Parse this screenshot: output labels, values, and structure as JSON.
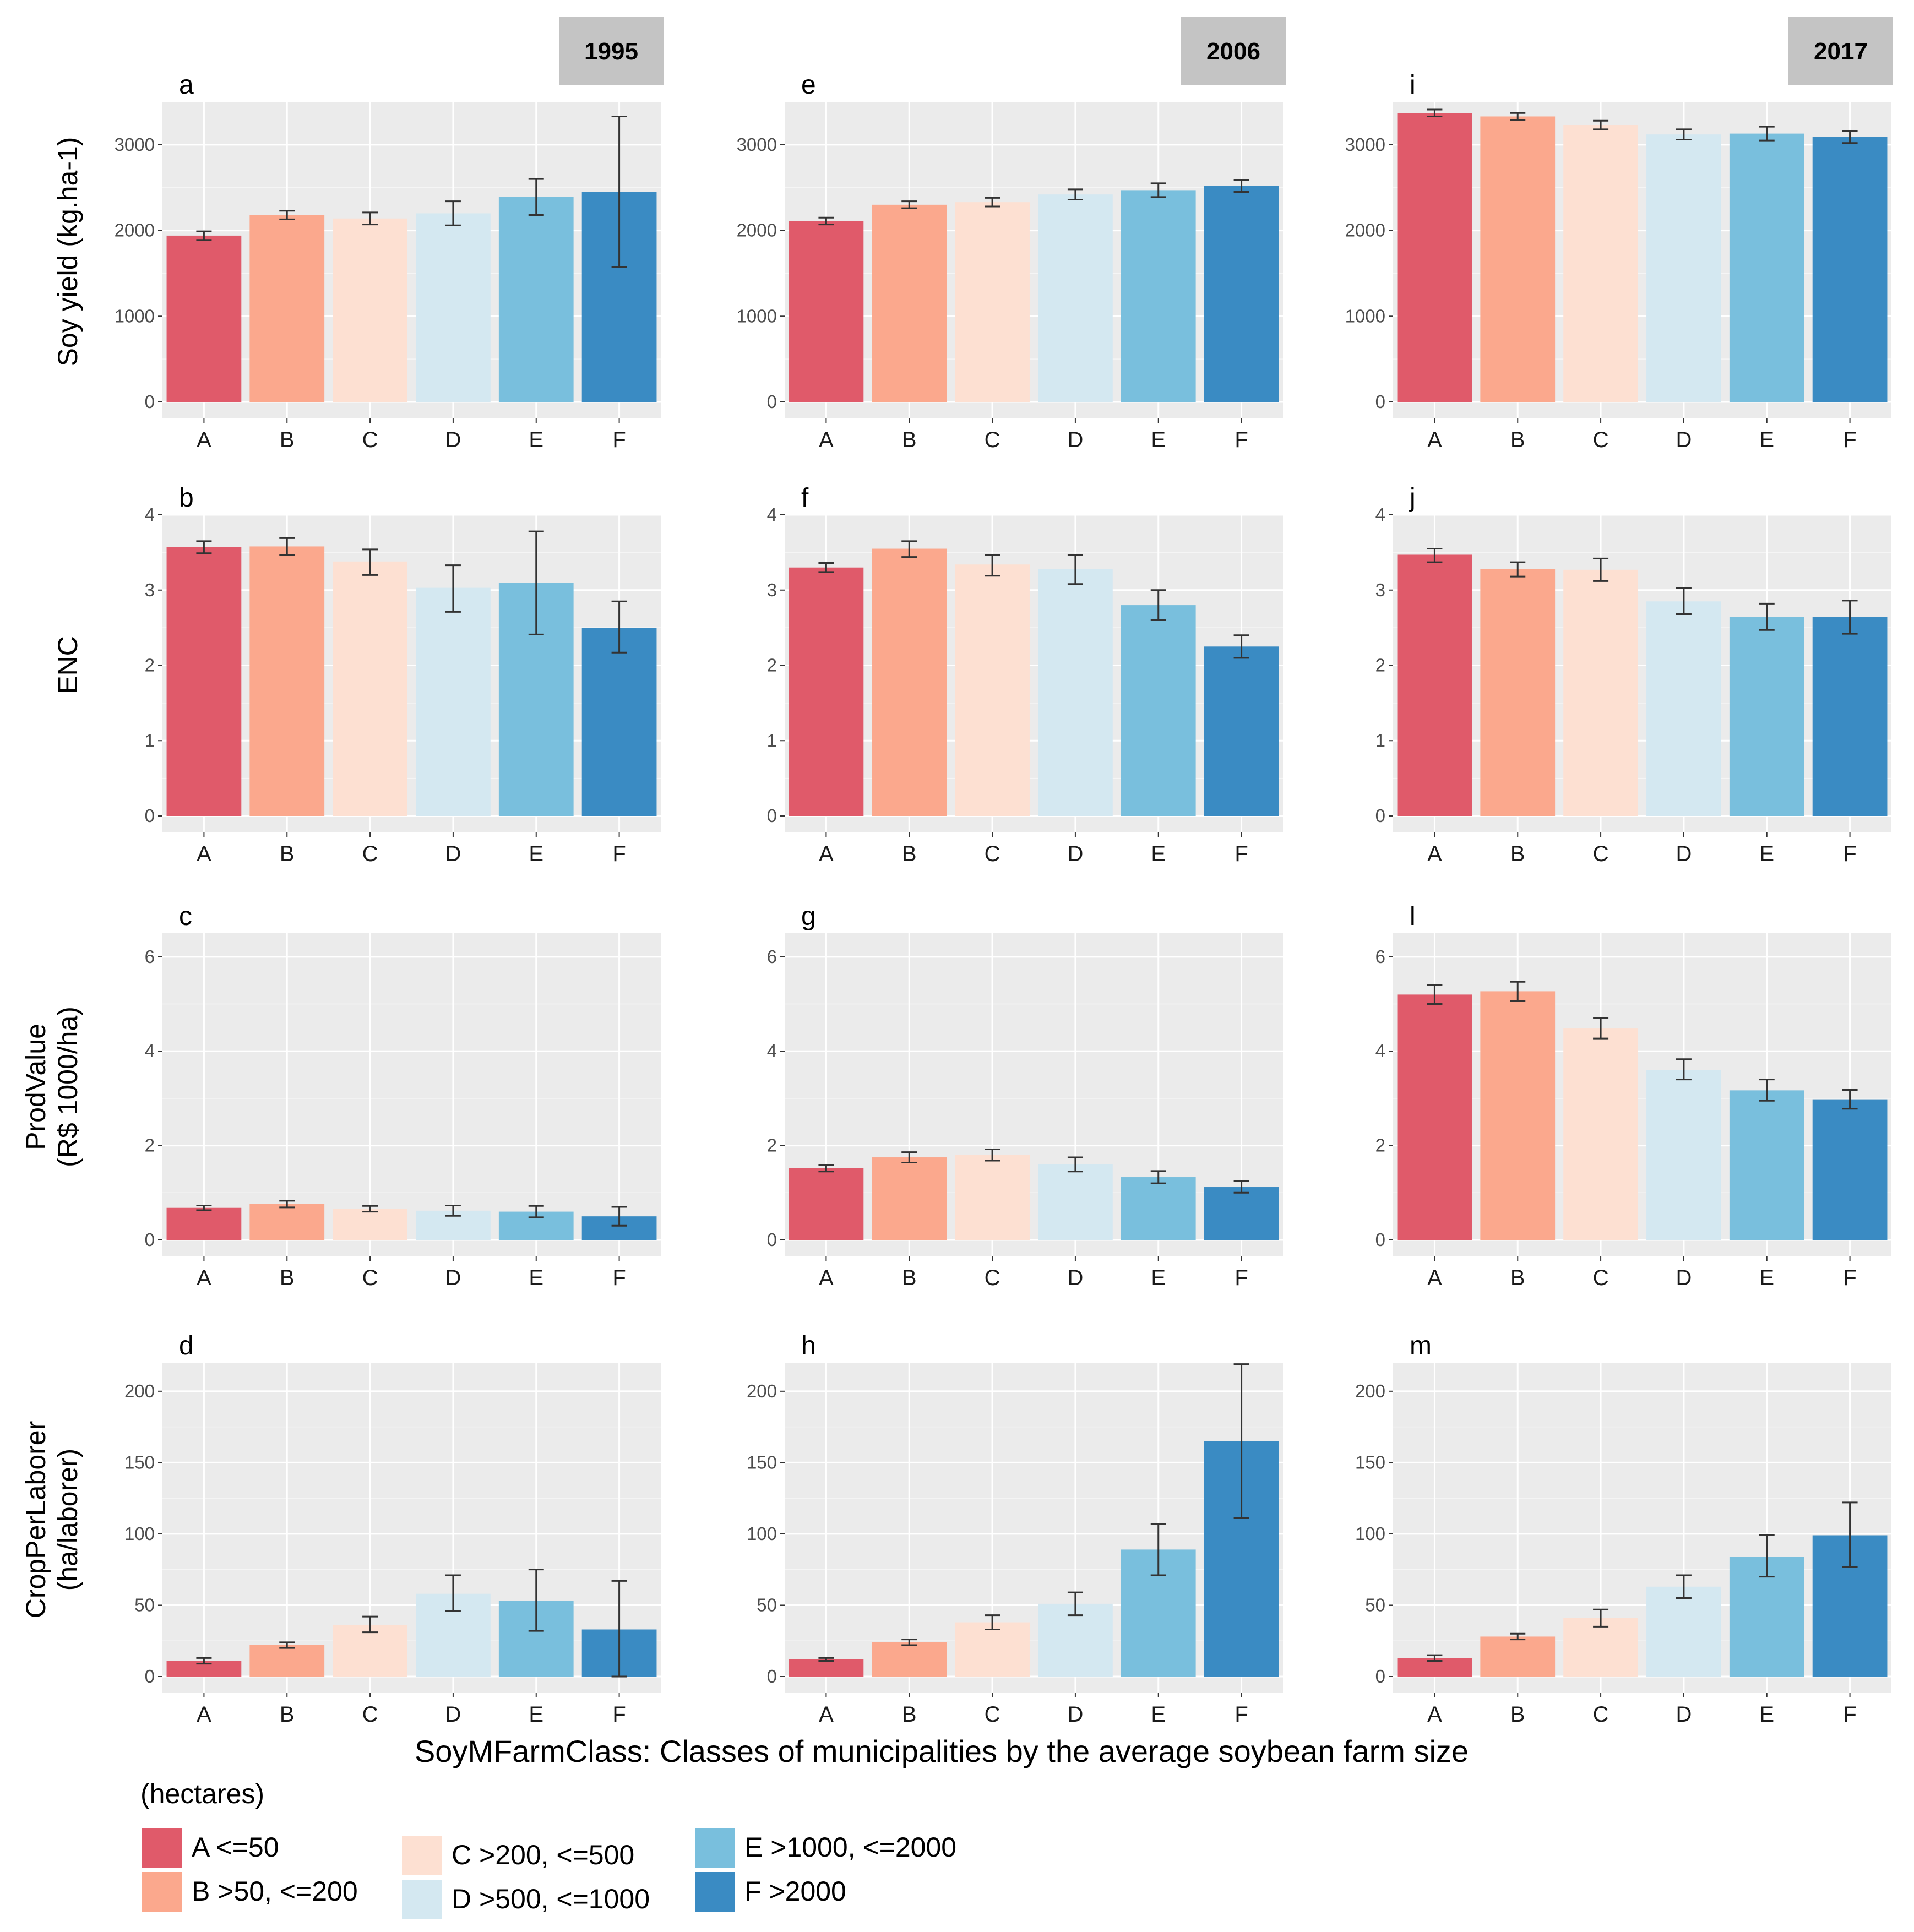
{
  "chart_data": {
    "type": "bar",
    "categories": [
      "A",
      "B",
      "C",
      "D",
      "E",
      "F"
    ],
    "category_colors": [
      "#e05a6a",
      "#fba88d",
      "#fde0d2",
      "#d4e8f1",
      "#79bfdd",
      "#3a8bc3"
    ],
    "years": [
      "1995",
      "2006",
      "2017"
    ],
    "xlabel": "SoyMFarmClass: Classes of municipalities by the average soybean farm size",
    "legend": {
      "title": "(hectares)",
      "entries": [
        "A <=50",
        "B >50, <=200",
        "C >200, <=500",
        "D >500, <=1000",
        "E >1000, <=2000",
        "F >2000"
      ]
    },
    "rows": [
      {
        "ylabel": [
          "Soy yield (kg.ha-1)"
        ],
        "ylim": [
          0,
          3500
        ],
        "ticks": [
          0,
          1000,
          2000,
          3000
        ]
      },
      {
        "ylabel": [
          "ENC"
        ],
        "ylim": [
          0,
          4
        ],
        "ticks": [
          0,
          1,
          2,
          3,
          4
        ]
      },
      {
        "ylabel": [
          "ProdValue",
          "(R$ 1000/ha)"
        ],
        "ylim": [
          0,
          6.5
        ],
        "ticks": [
          0,
          2,
          4,
          6
        ]
      },
      {
        "ylabel": [
          "CropPerLaborer",
          "(ha/laborer)"
        ],
        "ylim": [
          0,
          220
        ],
        "ticks": [
          0,
          50,
          100,
          150,
          200
        ]
      }
    ],
    "panels": [
      {
        "id": "a",
        "row": 0,
        "col": 0,
        "values": [
          1940,
          2180,
          2140,
          2200,
          2390,
          2450
        ],
        "err_low": [
          1890,
          2130,
          2070,
          2060,
          2180,
          1570
        ],
        "err_high": [
          1990,
          2230,
          2210,
          2340,
          2600,
          3330
        ]
      },
      {
        "id": "e",
        "row": 0,
        "col": 1,
        "values": [
          2110,
          2300,
          2330,
          2420,
          2470,
          2520
        ],
        "err_low": [
          2070,
          2260,
          2280,
          2360,
          2390,
          2450
        ],
        "err_high": [
          2150,
          2340,
          2380,
          2480,
          2550,
          2590
        ]
      },
      {
        "id": "i",
        "row": 0,
        "col": 2,
        "values": [
          3370,
          3330,
          3230,
          3120,
          3130,
          3090
        ],
        "err_low": [
          3330,
          3290,
          3180,
          3060,
          3050,
          3020
        ],
        "err_high": [
          3410,
          3370,
          3280,
          3180,
          3210,
          3160
        ]
      },
      {
        "id": "b",
        "row": 1,
        "col": 0,
        "values": [
          3.57,
          3.58,
          3.38,
          3.03,
          3.1,
          2.5
        ],
        "err_low": [
          3.49,
          3.47,
          3.2,
          2.71,
          2.41,
          2.17
        ],
        "err_high": [
          3.65,
          3.69,
          3.54,
          3.33,
          3.78,
          2.85
        ]
      },
      {
        "id": "f",
        "row": 1,
        "col": 1,
        "values": [
          3.3,
          3.55,
          3.34,
          3.28,
          2.8,
          2.25
        ],
        "err_low": [
          3.24,
          3.44,
          3.19,
          3.08,
          2.6,
          2.1
        ],
        "err_high": [
          3.36,
          3.65,
          3.47,
          3.47,
          3.0,
          2.4
        ]
      },
      {
        "id": "j",
        "row": 1,
        "col": 2,
        "values": [
          3.47,
          3.28,
          3.27,
          2.85,
          2.64,
          2.64
        ],
        "err_low": [
          3.37,
          3.18,
          3.12,
          2.68,
          2.47,
          2.42
        ],
        "err_high": [
          3.55,
          3.37,
          3.42,
          3.03,
          2.82,
          2.86
        ]
      },
      {
        "id": "c",
        "row": 2,
        "col": 0,
        "values": [
          0.68,
          0.76,
          0.66,
          0.62,
          0.6,
          0.5
        ],
        "err_low": [
          0.63,
          0.69,
          0.6,
          0.51,
          0.48,
          0.3
        ],
        "err_high": [
          0.73,
          0.83,
          0.72,
          0.73,
          0.72,
          0.7
        ]
      },
      {
        "id": "g",
        "row": 2,
        "col": 1,
        "values": [
          1.52,
          1.75,
          1.8,
          1.6,
          1.33,
          1.12
        ],
        "err_low": [
          1.45,
          1.64,
          1.68,
          1.45,
          1.2,
          1.0
        ],
        "err_high": [
          1.59,
          1.86,
          1.92,
          1.75,
          1.46,
          1.25
        ]
      },
      {
        "id": "l",
        "row": 2,
        "col": 2,
        "values": [
          5.2,
          5.27,
          4.48,
          3.6,
          3.17,
          2.98
        ],
        "err_low": [
          5.0,
          5.07,
          4.27,
          3.4,
          2.95,
          2.78
        ],
        "err_high": [
          5.4,
          5.47,
          4.7,
          3.83,
          3.4,
          3.18
        ]
      },
      {
        "id": "d",
        "row": 3,
        "col": 0,
        "values": [
          11,
          22,
          36,
          58,
          53,
          33
        ],
        "err_low": [
          9,
          20,
          31,
          46,
          32,
          0
        ],
        "err_high": [
          13,
          24,
          42,
          71,
          75,
          67
        ]
      },
      {
        "id": "h",
        "row": 3,
        "col": 1,
        "values": [
          12,
          24,
          38,
          51,
          89,
          165
        ],
        "err_low": [
          11,
          22,
          33,
          43,
          71,
          111
        ],
        "err_high": [
          13,
          26,
          43,
          59,
          107,
          219
        ]
      },
      {
        "id": "m",
        "row": 3,
        "col": 2,
        "values": [
          13,
          28,
          41,
          63,
          84,
          99
        ],
        "err_low": [
          11,
          26,
          35,
          55,
          70,
          77
        ],
        "err_high": [
          15,
          30,
          47,
          71,
          99,
          122
        ]
      }
    ]
  }
}
